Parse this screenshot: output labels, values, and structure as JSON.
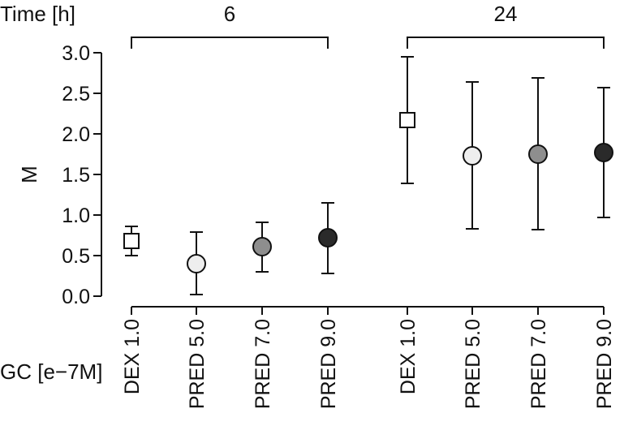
{
  "chart_data": {
    "type": "scatter",
    "ylabel": "M",
    "xlabel": "GC [e−7M]",
    "group_axis_label": "Time [h]",
    "ylim": [
      0.0,
      3.0
    ],
    "yticks": [
      "0.0",
      "0.5",
      "1.0",
      "1.5",
      "2.0",
      "2.5",
      "3.0"
    ],
    "ytick_values": [
      0.0,
      0.5,
      1.0,
      1.5,
      2.0,
      2.5,
      3.0
    ],
    "grid": false,
    "groups": [
      {
        "label": "6",
        "first": 0,
        "last": 3
      },
      {
        "label": "24",
        "first": 4,
        "last": 7
      }
    ],
    "categories": [
      "DEX 1.0",
      "PRED 5.0",
      "PRED 7.0",
      "PRED 9.0",
      "DEX 1.0",
      "PRED 5.0",
      "PRED 7.0",
      "PRED 9.0"
    ],
    "points": [
      {
        "category": "DEX 1.0",
        "time": "6",
        "y": 0.68,
        "low": 0.5,
        "high": 0.86,
        "marker": "square",
        "fill": "#ffffff"
      },
      {
        "category": "PRED 5.0",
        "time": "6",
        "y": 0.4,
        "low": 0.02,
        "high": 0.79,
        "marker": "circle",
        "fill": "#eeeeee"
      },
      {
        "category": "PRED 7.0",
        "time": "6",
        "y": 0.61,
        "low": 0.3,
        "high": 0.91,
        "marker": "circle",
        "fill": "#8e8e8e"
      },
      {
        "category": "PRED 9.0",
        "time": "6",
        "y": 0.72,
        "low": 0.28,
        "high": 1.15,
        "marker": "circle",
        "fill": "#2a2a2a"
      },
      {
        "category": "DEX 1.0",
        "time": "24",
        "y": 2.17,
        "low": 1.39,
        "high": 2.95,
        "marker": "square",
        "fill": "#ffffff"
      },
      {
        "category": "PRED 5.0",
        "time": "24",
        "y": 1.73,
        "low": 0.83,
        "high": 2.64,
        "marker": "circle",
        "fill": "#eeeeee"
      },
      {
        "category": "PRED 7.0",
        "time": "24",
        "y": 1.75,
        "low": 0.82,
        "high": 2.69,
        "marker": "circle",
        "fill": "#8e8e8e"
      },
      {
        "category": "PRED 9.0",
        "time": "24",
        "y": 1.77,
        "low": 0.97,
        "high": 2.57,
        "marker": "circle",
        "fill": "#2a2a2a"
      }
    ]
  }
}
